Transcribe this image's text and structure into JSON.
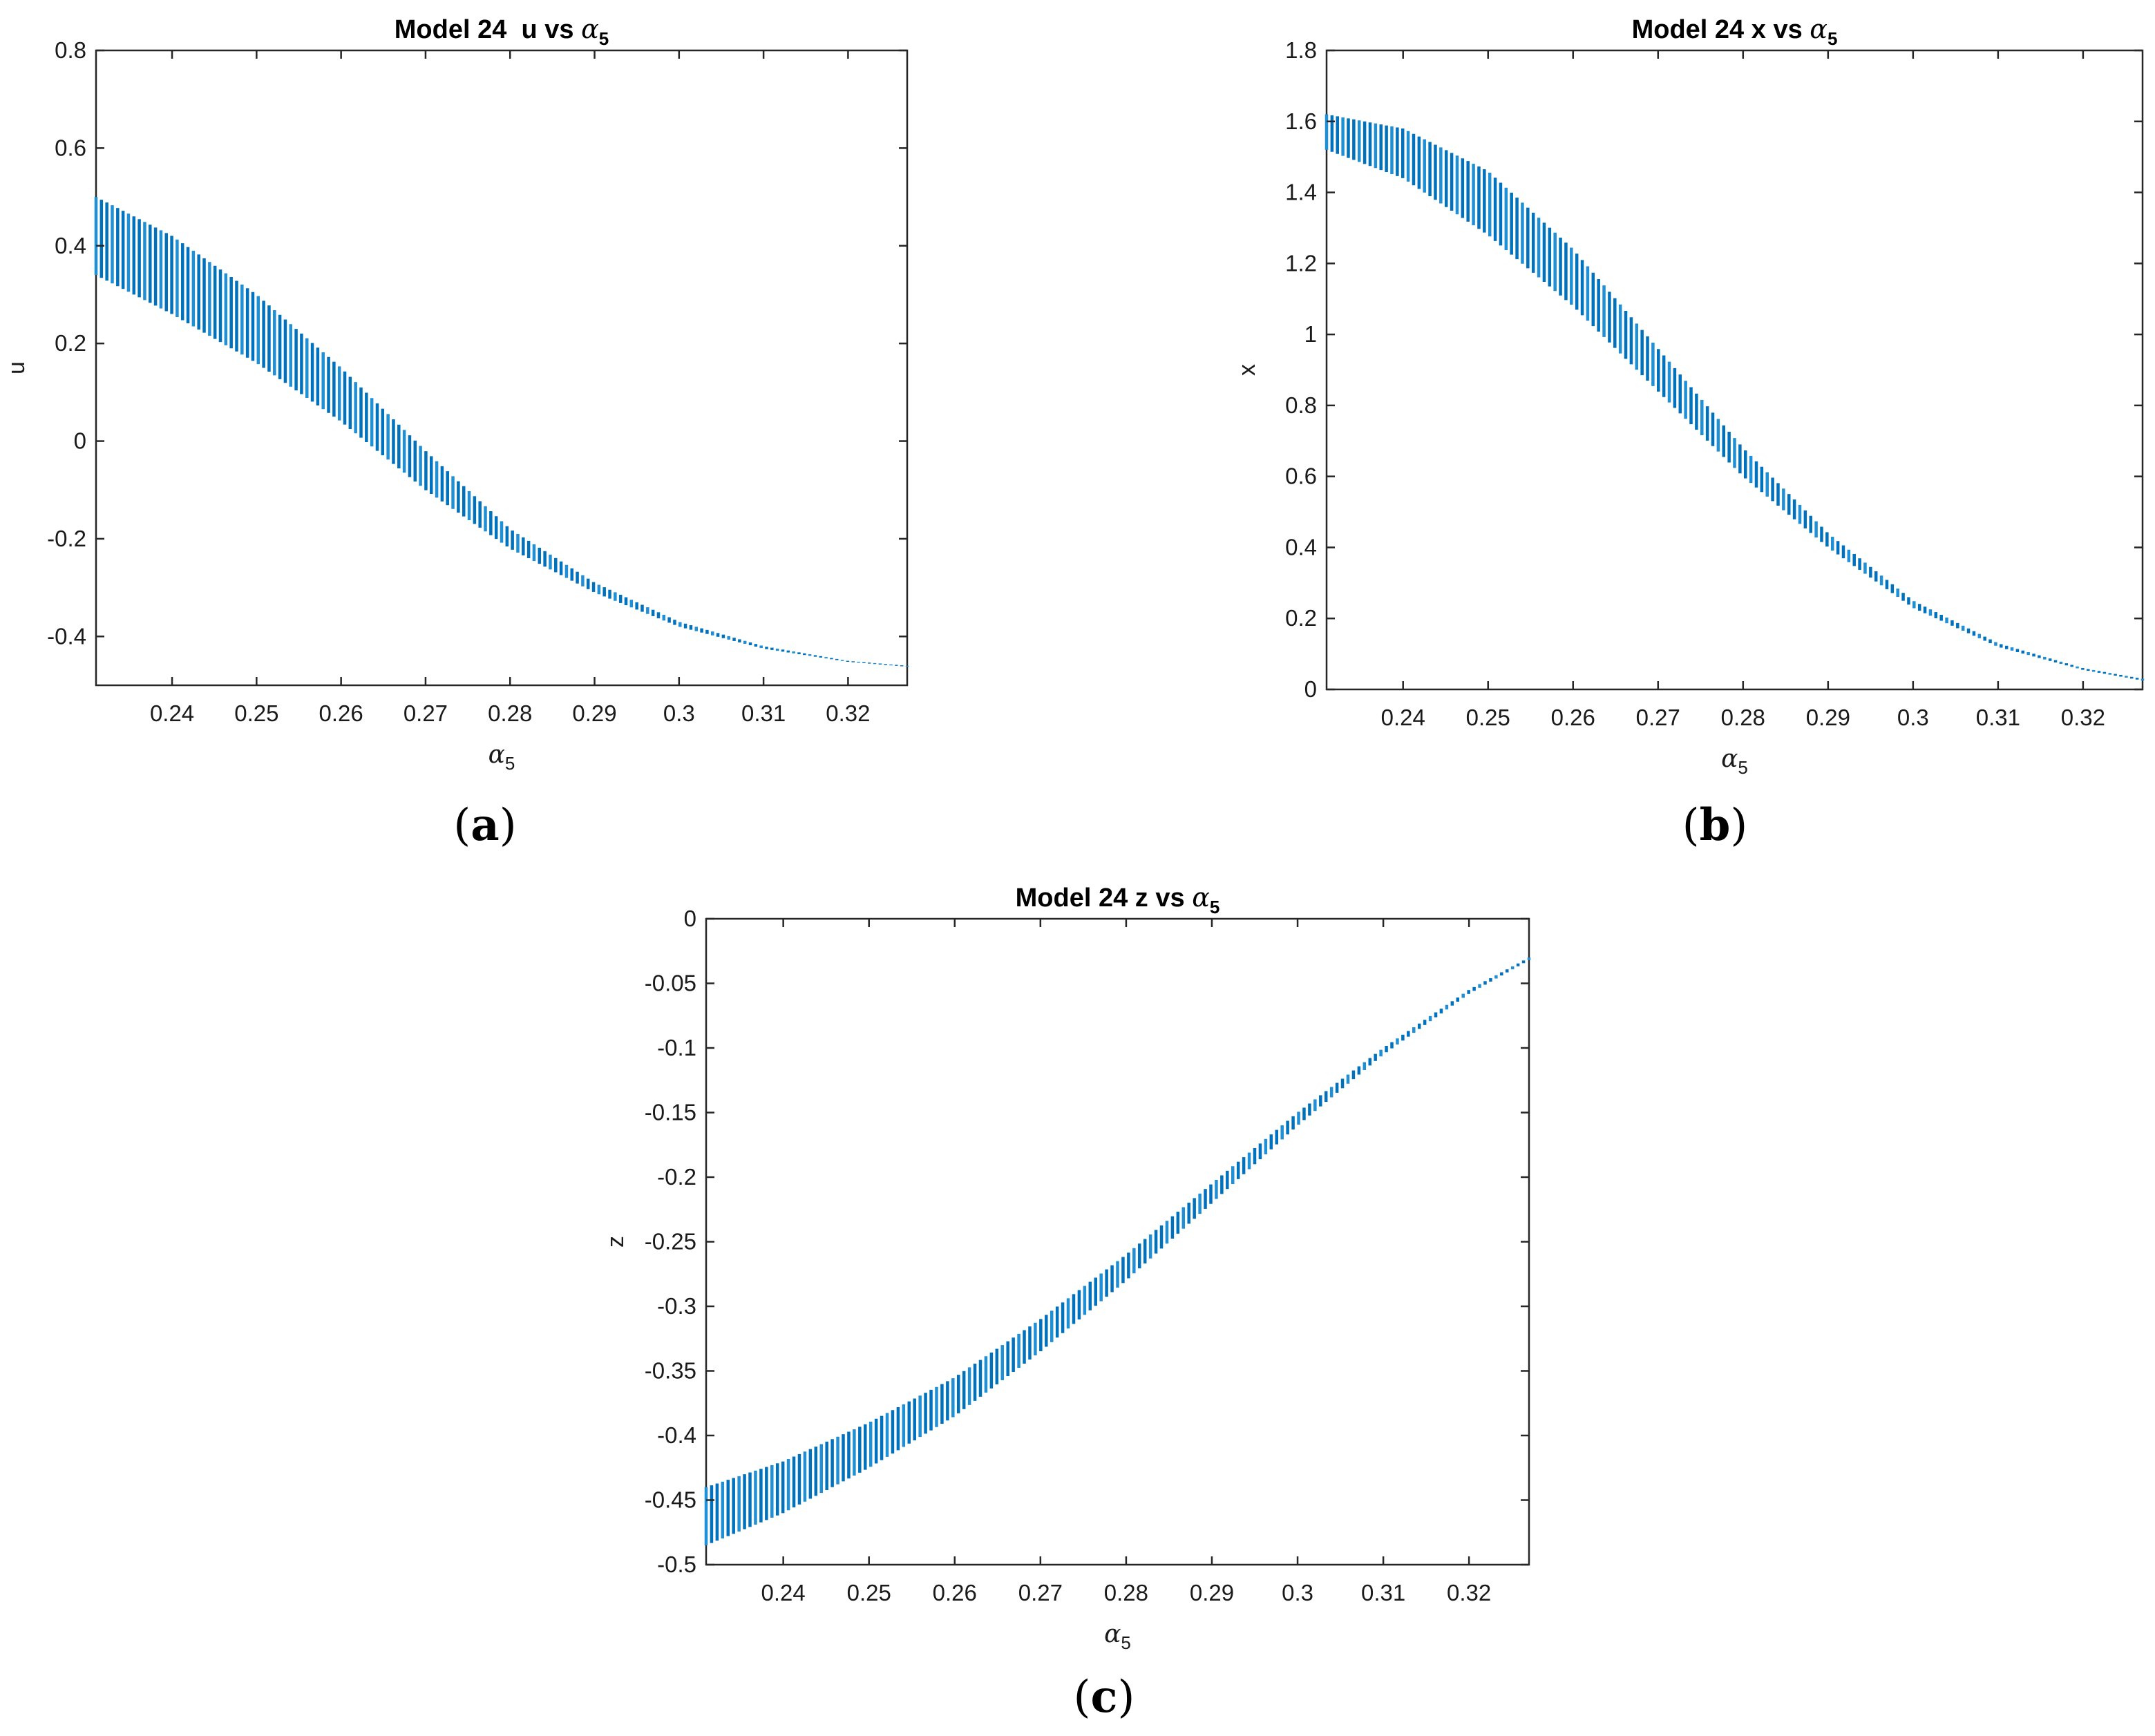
{
  "figure": {
    "panel_tags": [
      {
        "open": "(",
        "letter": "a",
        "close": ")"
      },
      {
        "open": "(",
        "letter": "b",
        "close": ")"
      },
      {
        "open": "(",
        "letter": "c",
        "close": ")"
      }
    ]
  },
  "chart_data": [
    {
      "type": "scatter",
      "title_prefix": "Model 24  u vs ",
      "title_symbol": "α",
      "title_subscript": "5",
      "xlabel_symbol": "α",
      "xlabel_subscript": "5",
      "ylabel": "u",
      "xlim": [
        0.231,
        0.327
      ],
      "ylim": [
        -0.5,
        0.8
      ],
      "xticks": [
        0.24,
        0.25,
        0.26,
        0.27,
        0.28,
        0.29,
        0.3,
        0.31,
        0.32
      ],
      "xtick_labels": [
        "0.24",
        "0.25",
        "0.26",
        "0.27",
        "0.28",
        "0.29",
        "0.3",
        "0.31",
        "0.32"
      ],
      "yticks": [
        -0.4,
        -0.2,
        0,
        0.2,
        0.4,
        0.6,
        0.8
      ],
      "ytick_labels": [
        "-0.4",
        "-0.2",
        "0",
        "0.2",
        "0.4",
        "0.6",
        "0.8"
      ],
      "color": "#0072BD",
      "band": {
        "x": [
          0.231,
          0.24,
          0.25,
          0.26,
          0.27,
          0.28,
          0.29,
          0.3,
          0.31,
          0.32,
          0.327
        ],
        "upper": [
          0.5,
          0.42,
          0.3,
          0.15,
          -0.02,
          -0.18,
          -0.29,
          -0.37,
          -0.42,
          -0.45,
          -0.46
        ],
        "lower": [
          0.34,
          0.26,
          0.16,
          0.04,
          -0.1,
          -0.22,
          -0.31,
          -0.38,
          -0.425,
          -0.452,
          -0.462
        ]
      }
    },
    {
      "type": "scatter",
      "title_prefix": "Model 24 x vs ",
      "title_symbol": "α",
      "title_subscript": "5",
      "xlabel_symbol": "α",
      "xlabel_subscript": "5",
      "ylabel": "x",
      "xlim": [
        0.231,
        0.327
      ],
      "ylim": [
        0,
        1.8
      ],
      "xticks": [
        0.24,
        0.25,
        0.26,
        0.27,
        0.28,
        0.29,
        0.3,
        0.31,
        0.32
      ],
      "xtick_labels": [
        "0.24",
        "0.25",
        "0.26",
        "0.27",
        "0.28",
        "0.29",
        "0.3",
        "0.31",
        "0.32"
      ],
      "yticks": [
        0,
        0.2,
        0.4,
        0.6,
        0.8,
        1,
        1.2,
        1.4,
        1.6,
        1.8
      ],
      "ytick_labels": [
        "0",
        "0.2",
        "0.4",
        "0.6",
        "0.8",
        "1",
        "1.2",
        "1.4",
        "1.6",
        "1.8"
      ],
      "color": "#0072BD",
      "band": {
        "x": [
          0.231,
          0.24,
          0.25,
          0.26,
          0.27,
          0.28,
          0.29,
          0.3,
          0.31,
          0.32,
          0.327
        ],
        "upper": [
          1.62,
          1.58,
          1.46,
          1.24,
          0.96,
          0.68,
          0.44,
          0.25,
          0.13,
          0.06,
          0.03
        ],
        "lower": [
          1.52,
          1.44,
          1.28,
          1.08,
          0.84,
          0.6,
          0.4,
          0.23,
          0.12,
          0.055,
          0.025
        ]
      }
    },
    {
      "type": "scatter",
      "title_prefix": "Model 24 z vs ",
      "title_symbol": "α",
      "title_subscript": "5",
      "xlabel_symbol": "α",
      "xlabel_subscript": "5",
      "ylabel": "z",
      "xlim": [
        0.231,
        0.327
      ],
      "ylim": [
        -0.5,
        0
      ],
      "xticks": [
        0.24,
        0.25,
        0.26,
        0.27,
        0.28,
        0.29,
        0.3,
        0.31,
        0.32
      ],
      "xtick_labels": [
        "0.24",
        "0.25",
        "0.26",
        "0.27",
        "0.28",
        "0.29",
        "0.3",
        "0.31",
        "0.32"
      ],
      "yticks": [
        -0.5,
        -0.45,
        -0.4,
        -0.35,
        -0.3,
        -0.25,
        -0.2,
        -0.15,
        -0.1,
        -0.05,
        0
      ],
      "ytick_labels": [
        "-0.5",
        "-0.45",
        "-0.4",
        "-0.35",
        "-0.3",
        "-0.25",
        "-0.2",
        "-0.15",
        "-0.1",
        "-0.05",
        "0"
      ],
      "color": "#0072BD",
      "band": {
        "x": [
          0.231,
          0.24,
          0.25,
          0.26,
          0.27,
          0.28,
          0.29,
          0.3,
          0.31,
          0.32,
          0.327
        ],
        "upper": [
          -0.44,
          -0.42,
          -0.39,
          -0.355,
          -0.31,
          -0.26,
          -0.205,
          -0.15,
          -0.1,
          -0.055,
          -0.03
        ],
        "lower": [
          -0.485,
          -0.46,
          -0.425,
          -0.385,
          -0.335,
          -0.28,
          -0.22,
          -0.16,
          -0.105,
          -0.058,
          -0.032
        ]
      }
    }
  ]
}
